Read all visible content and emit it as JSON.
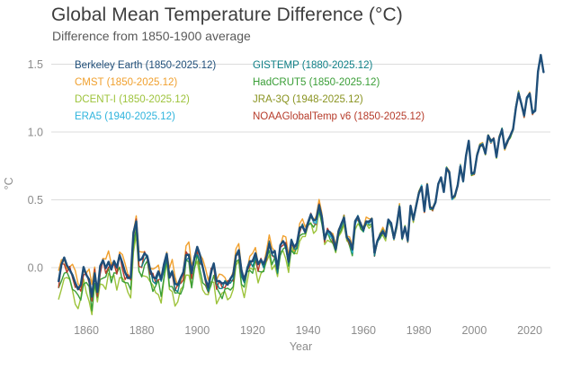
{
  "header": {
    "title": "Global Mean Temperature Difference (°C)",
    "subtitle": "Difference from 1850-1900 average"
  },
  "chart_data": {
    "type": "line",
    "title": "Global Mean Temperature Difference (°C)",
    "subtitle": "Difference from 1850-1900 average",
    "xlabel": "Year",
    "ylabel": "°C",
    "grid": "horizontal",
    "legend_position": "top-inside-two-columns",
    "x_range": [
      1850,
      2025
    ],
    "ylim": [
      -0.4,
      1.65
    ],
    "x_ticks": [
      1860,
      1880,
      1900,
      1920,
      1940,
      1960,
      1980,
      2000,
      2020
    ],
    "y_ticks": [
      0.0,
      0.5,
      1.0,
      1.5
    ],
    "base_start_year": 1850,
    "base_values": [
      -0.12,
      -0.01,
      0.04,
      -0.01,
      -0.03,
      -0.06,
      -0.12,
      -0.18,
      -0.16,
      -0.03,
      -0.08,
      -0.1,
      -0.22,
      -0.05,
      -0.2,
      -0.02,
      0.02,
      -0.03,
      0.03,
      -0.02,
      0.04,
      -0.02,
      0.06,
      0.0,
      -0.06,
      -0.09,
      -0.08,
      0.25,
      0.32,
      0.02,
      0.03,
      0.08,
      0.07,
      -0.02,
      -0.08,
      -0.1,
      -0.06,
      -0.12,
      0.0,
      0.09,
      -0.08,
      -0.04,
      -0.14,
      -0.16,
      -0.11,
      -0.06,
      0.08,
      0.09,
      -0.05,
      0.05,
      0.12,
      0.06,
      -0.02,
      -0.1,
      -0.15,
      -0.04,
      0.01,
      -0.13,
      -0.13,
      -0.14,
      -0.12,
      -0.13,
      -0.09,
      -0.07,
      0.06,
      0.1,
      -0.04,
      -0.1,
      -0.02,
      0.04,
      0.03,
      0.08,
      0.0,
      0.04,
      0.02,
      0.08,
      0.17,
      0.09,
      0.1,
      -0.03,
      0.15,
      0.19,
      0.16,
      0.04,
      0.19,
      0.13,
      0.16,
      0.28,
      0.3,
      0.26,
      0.33,
      0.38,
      0.33,
      0.34,
      0.45,
      0.37,
      0.21,
      0.27,
      0.25,
      0.21,
      0.12,
      0.26,
      0.32,
      0.37,
      0.22,
      0.19,
      0.12,
      0.33,
      0.37,
      0.32,
      0.28,
      0.34,
      0.33,
      0.35,
      0.1,
      0.19,
      0.24,
      0.27,
      0.23,
      0.35,
      0.32,
      0.21,
      0.31,
      0.45,
      0.22,
      0.3,
      0.2,
      0.45,
      0.35,
      0.45,
      0.55,
      0.6,
      0.42,
      0.61,
      0.44,
      0.43,
      0.48,
      0.62,
      0.67,
      0.56,
      0.73,
      0.7,
      0.51,
      0.53,
      0.61,
      0.75,
      0.64,
      0.82,
      0.93,
      0.69,
      0.7,
      0.83,
      0.9,
      0.91,
      0.84,
      0.97,
      0.93,
      0.95,
      0.82,
      0.96,
      1.02,
      0.88,
      0.93,
      0.97,
      1.02,
      1.18,
      1.29,
      1.21,
      1.12,
      1.25,
      1.28,
      1.14,
      1.16,
      1.45,
      1.57,
      1.44
    ],
    "series": [
      {
        "id": "berkeley-earth",
        "label": "Berkeley Earth (1850-2025.12)",
        "color": "#1f4e79",
        "start_year": 1850,
        "end_year": 2025,
        "offset": 0.02,
        "noise": 0.015,
        "width": 2.4,
        "z": 8
      },
      {
        "id": "cmst",
        "label": "CMST (1850-2025.12)",
        "color": "#f0a02e",
        "start_year": 1850,
        "end_year": 2025,
        "offset": 0.05,
        "noise": 0.05,
        "width": 1.4,
        "z": 2
      },
      {
        "id": "dcent-i",
        "label": "DCENT-I (1850-2025.12)",
        "color": "#9dc33b",
        "start_year": 1850,
        "end_year": 2025,
        "offset": -0.1,
        "noise": 0.05,
        "width": 1.4,
        "z": 1
      },
      {
        "id": "era5",
        "label": "ERA5 (1940-2025.12)",
        "color": "#2fb4dd",
        "start_year": 1940,
        "end_year": 2025,
        "offset": 0.0,
        "noise": 0.025,
        "width": 1.5,
        "z": 7
      },
      {
        "id": "gistemp",
        "label": "GISTEMP (1880-2025.12)",
        "color": "#0e7f86",
        "start_year": 1880,
        "end_year": 2025,
        "offset": 0.0,
        "noise": 0.03,
        "width": 1.4,
        "z": 5
      },
      {
        "id": "hadcrut5",
        "label": "HadCRUT5 (1850-2025.12)",
        "color": "#3a9e37",
        "start_year": 1850,
        "end_year": 2025,
        "offset": -0.06,
        "noise": 0.04,
        "width": 1.4,
        "z": 3
      },
      {
        "id": "jra-3q",
        "label": "JRA-3Q (1948-2025.12)",
        "color": "#8a9422",
        "start_year": 1948,
        "end_year": 2025,
        "offset": 0.02,
        "noise": 0.03,
        "width": 1.4,
        "z": 6
      },
      {
        "id": "noaaglobaltemp-v6",
        "label": "NOAAGlobalTemp v6 (1850-2025.12)",
        "color": "#b63b2a",
        "start_year": 1850,
        "end_year": 2025,
        "offset": 0.0,
        "noise": 0.04,
        "width": 1.4,
        "z": 4
      }
    ]
  }
}
